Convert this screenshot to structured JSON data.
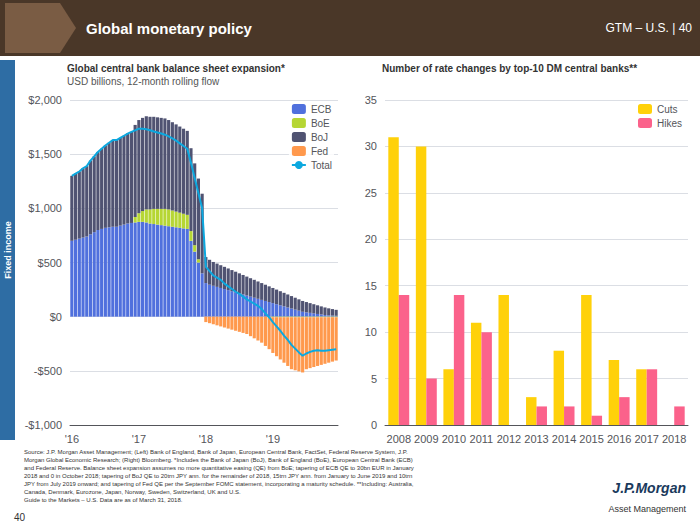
{
  "title": "Global monetary policy",
  "annotations": [
    "GTM – U.S. | 40",
    "Fixed income",
    "Source: J.P. Morgan Asset Management; (Left) Bank of England, Bank of Japan, European Central Bank, FactSet, Federal Reserve System, J.P.",
    "Morgan Global Economic Research; (Right) Bloomberg. *Includes the Bank of Japan (BoJ), Bank of England (BoE), European Central Bank (ECB)",
    "and Federal Reserve. Balance sheet expansion assumes no more quantitative easing (QE) from BoE; tapering of ECB QE to 30bn EUR in January",
    "2018 and 0 in October 2018; tapering of BoJ QE to 20trn JPY ann. for the remainder of 2018, 15trn JPY ann. from January to June 2019 and 10trn",
    "JPY from July 2019 onward; and tapering of Fed QE per the September FOMC statement, incorporating a maturity schedule. **Including: Australia,",
    "Canada, Denmark, Eurozone, Japan, Norway, Sweden, Switzerland, UK and U.S.",
    "Guide to the Markets – U.S. Data are as of March 31, 2018.",
    "40",
    "J.P.Morgan",
    "Asset Management"
  ],
  "chart_data": [
    {
      "type": "bar",
      "title": "Global central bank balance sheet expansion*",
      "subtitle": "USD billions, 12-month rolling flow",
      "stacked": true,
      "categories": [
        "'16",
        null,
        null,
        null,
        null,
        null,
        null,
        null,
        null,
        null,
        null,
        null,
        null,
        null,
        null,
        null,
        null,
        null,
        "'17",
        null,
        null,
        null,
        null,
        null,
        null,
        null,
        null,
        null,
        null,
        null,
        null,
        null,
        null,
        null,
        null,
        null,
        "'18",
        null,
        null,
        null,
        null,
        null,
        null,
        null,
        null,
        null,
        null,
        null,
        null,
        null,
        null,
        null,
        null,
        null,
        "'19",
        null,
        null,
        null,
        null,
        null,
        null,
        null,
        null,
        null,
        null,
        null,
        null,
        null,
        null,
        null,
        null,
        null
      ],
      "series": [
        {
          "name": "ECB",
          "values": [
            700,
            710,
            720,
            730,
            740,
            760,
            780,
            800,
            810,
            820,
            825,
            830,
            830,
            840,
            850,
            860,
            865,
            870,
            875,
            875,
            870,
            860,
            855,
            850,
            845,
            840,
            835,
            830,
            825,
            820,
            815,
            810,
            700,
            600,
            500,
            400,
            310,
            295,
            285,
            275,
            265,
            255,
            245,
            235,
            225,
            215,
            205,
            195,
            185,
            175,
            165,
            155,
            145,
            135,
            125,
            115,
            105,
            95,
            85,
            75,
            65,
            55,
            45,
            40,
            35,
            30,
            25,
            20,
            15,
            12,
            10,
            8
          ]
        },
        {
          "name": "BoE",
          "values": [
            0,
            0,
            0,
            0,
            0,
            0,
            0,
            0,
            0,
            0,
            0,
            0,
            0,
            0,
            0,
            0,
            0,
            50,
            80,
            100,
            120,
            130,
            140,
            145,
            150,
            155,
            155,
            150,
            145,
            140,
            135,
            130,
            90,
            60,
            30,
            0,
            0,
            0,
            0,
            0,
            0,
            0,
            0,
            0,
            0,
            0,
            0,
            0,
            0,
            0,
            0,
            0,
            0,
            0,
            -5,
            -5,
            -5,
            -5,
            -5,
            -5,
            -5,
            -5,
            -5,
            -5,
            -5,
            -5,
            -5,
            -5,
            -5,
            -5,
            -5,
            -5
          ]
        },
        {
          "name": "BoJ",
          "values": [
            600,
            610,
            620,
            640,
            650,
            680,
            700,
            720,
            740,
            760,
            780,
            800,
            800,
            810,
            820,
            830,
            840,
            850,
            860,
            860,
            860,
            855,
            850,
            845,
            840,
            835,
            825,
            815,
            805,
            795,
            785,
            775,
            765,
            755,
            745,
            735,
            240,
            230,
            220,
            215,
            210,
            205,
            200,
            195,
            190,
            185,
            180,
            175,
            170,
            165,
            160,
            155,
            150,
            145,
            140,
            135,
            130,
            125,
            120,
            115,
            110,
            105,
            100,
            95,
            90,
            85,
            80,
            75,
            70,
            65,
            60,
            55
          ]
        },
        {
          "name": "Fed",
          "values": [
            0,
            0,
            0,
            0,
            0,
            0,
            0,
            0,
            0,
            0,
            0,
            0,
            0,
            0,
            0,
            0,
            0,
            0,
            0,
            0,
            0,
            0,
            0,
            0,
            0,
            0,
            0,
            0,
            0,
            0,
            0,
            0,
            0,
            0,
            0,
            0,
            -50,
            -60,
            -70,
            -80,
            -90,
            -100,
            -110,
            -120,
            -130,
            -140,
            -150,
            -160,
            -180,
            -200,
            -220,
            -240,
            -270,
            -300,
            -330,
            -360,
            -390,
            -420,
            -450,
            -480,
            -490,
            -500,
            -510,
            -480,
            -470,
            -460,
            -450,
            -440,
            -430,
            -420,
            -410,
            -400
          ]
        },
        {
          "name": "Total",
          "type": "line",
          "values": [
            1300,
            1320,
            1340,
            1370,
            1390,
            1440,
            1480,
            1520,
            1550,
            1580,
            1605,
            1630,
            1630,
            1650,
            1670,
            1690,
            1705,
            1720,
            1735,
            1735,
            1730,
            1720,
            1710,
            1700,
            1690,
            1680,
            1665,
            1645,
            1625,
            1600,
            1575,
            1550,
            1420,
            1280,
            1140,
            1000,
            460,
            420,
            380,
            360,
            340,
            305,
            280,
            255,
            230,
            210,
            185,
            160,
            140,
            120,
            100,
            70,
            30,
            -5,
            -50,
            -90,
            -130,
            -175,
            -215,
            -260,
            -295,
            -330,
            -360,
            -340,
            -325,
            -315,
            -310,
            -315,
            -315,
            -310,
            -305,
            -300
          ]
        }
      ],
      "ylim": [
        -1000,
        2000
      ],
      "yticks": [
        {
          "value": -1000,
          "label": "-$1,000"
        },
        {
          "value": -500,
          "label": "-$500"
        },
        {
          "value": 0,
          "label": "$0"
        },
        {
          "value": 500,
          "label": "$500"
        },
        {
          "value": 1000,
          "label": "$1,000"
        },
        {
          "value": 1500,
          "label": "$1,500"
        },
        {
          "value": 2000,
          "label": "$2,000"
        }
      ],
      "grid": true,
      "legend": "upper right"
    },
    {
      "type": "bar",
      "title": "Number of rate changes by top-10 DM central banks**",
      "categories": [
        "2008",
        "2009",
        "2010",
        "2011",
        "2012",
        "2013",
        "2014",
        "2015",
        "2016",
        "2017",
        "2018"
      ],
      "series": [
        {
          "name": "Cuts",
          "values": [
            31,
            30,
            6,
            11,
            14,
            3,
            8,
            14,
            7,
            6,
            0
          ]
        },
        {
          "name": "Hikes",
          "values": [
            14,
            5,
            14,
            10,
            0,
            2,
            2,
            1,
            3,
            6,
            2
          ]
        }
      ],
      "ylim": [
        0,
        35
      ],
      "yticks": [
        0,
        5,
        10,
        15,
        20,
        25,
        30,
        35
      ],
      "grid": true,
      "legend": "upper right"
    }
  ]
}
